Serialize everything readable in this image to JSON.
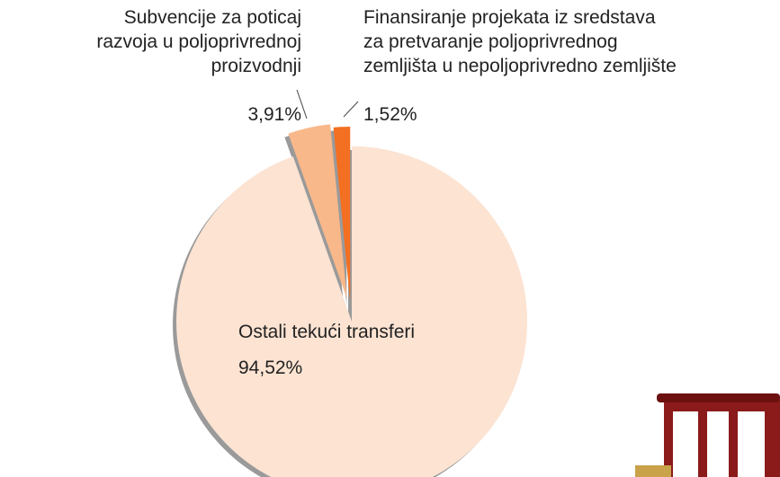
{
  "chart_data": {
    "type": "pie",
    "categories": [
      "Ostali tekući transferi",
      "Subvencije za poticaj\nrazvoja u poljoprivrednoj\nproizvodnji",
      "Finansiranje projekata iz sredstava\nza pretvaranje poljoprivrednog\nzemljišta u nepoljoprivredno zemljište"
    ],
    "values": [
      94.52,
      3.91,
      1.52
    ],
    "value_labels": [
      "94,52%",
      "3,91%",
      "1,52%"
    ],
    "colors": [
      "#fce3d2",
      "#f9b88a",
      "#f36f21"
    ]
  }
}
